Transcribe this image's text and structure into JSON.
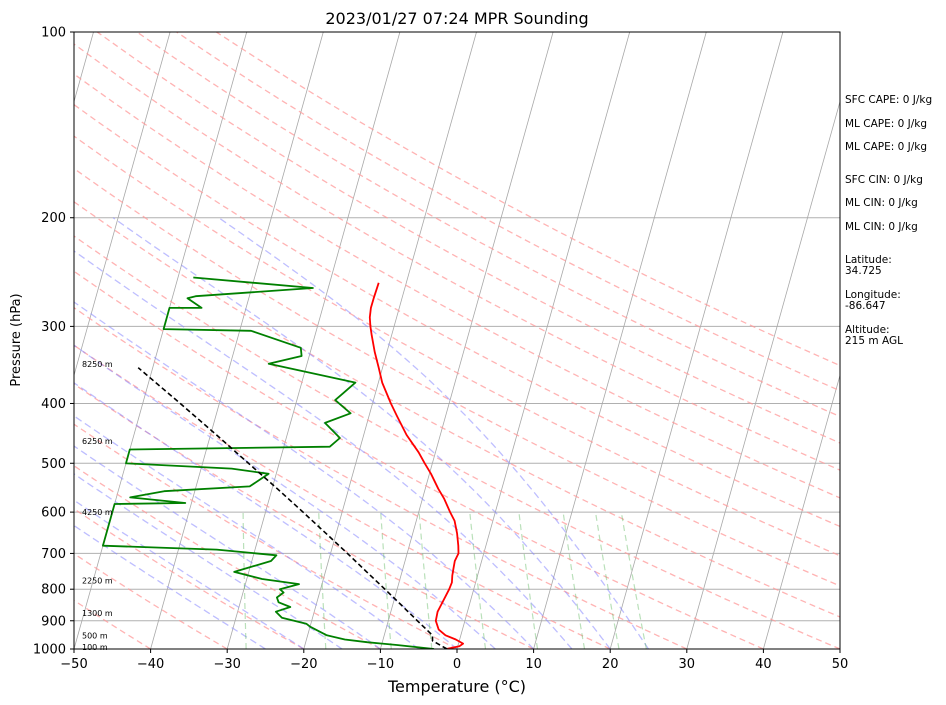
{
  "chart_data": {
    "type": "line",
    "title": "2023/01/27 07:24 MPR Sounding",
    "xlabel": "Temperature (°C)",
    "ylabel": "Pressure (hPa)",
    "xlim": [
      -50,
      50
    ],
    "ylim": [
      1000,
      100
    ],
    "yscale": "log",
    "grid": true,
    "x_ticks": [
      "−50",
      "−40",
      "−30",
      "−20",
      "−10",
      "0",
      "10",
      "20",
      "30",
      "40",
      "50"
    ],
    "y_ticks": [
      "1000",
      "900",
      "800",
      "700",
      "600",
      "500",
      "400",
      "300",
      "200",
      "100"
    ],
    "series": [
      {
        "color": "#ff0000",
        "values": [
          [
            1000,
            -1.4
          ],
          [
            990,
            0.2
          ],
          [
            980,
            0.6
          ],
          [
            965,
            -0.5
          ],
          [
            950,
            -2.0
          ],
          [
            930,
            -3.1
          ],
          [
            900,
            -3.8
          ],
          [
            870,
            -3.9
          ],
          [
            850,
            -3.7
          ],
          [
            820,
            -3.4
          ],
          [
            800,
            -3.2
          ],
          [
            780,
            -3.1
          ],
          [
            760,
            -3.3
          ],
          [
            740,
            -3.4
          ],
          [
            720,
            -3.5
          ],
          [
            700,
            -3.3
          ],
          [
            680,
            -3.6
          ],
          [
            650,
            -4.2
          ],
          [
            620,
            -5.0
          ],
          [
            600,
            -5.9
          ],
          [
            570,
            -7.2
          ],
          [
            550,
            -8.3
          ],
          [
            520,
            -9.8
          ],
          [
            500,
            -11.0
          ],
          [
            480,
            -12.2
          ],
          [
            450,
            -14.4
          ],
          [
            420,
            -16.3
          ],
          [
            400,
            -17.6
          ],
          [
            370,
            -19.5
          ],
          [
            350,
            -20.5
          ],
          [
            330,
            -21.6
          ],
          [
            310,
            -22.6
          ],
          [
            300,
            -23.1
          ],
          [
            290,
            -23.5
          ],
          [
            280,
            -23.7
          ],
          [
            270,
            -23.7
          ],
          [
            255,
            -23.6
          ]
        ]
      },
      {
        "color": "#008000",
        "values": [
          [
            1000,
            -3.0
          ],
          [
            985,
            -8.0
          ],
          [
            975,
            -12.0
          ],
          [
            965,
            -15.0
          ],
          [
            950,
            -17.5
          ],
          [
            920,
            -20.0
          ],
          [
            910,
            -20.6
          ],
          [
            890,
            -24.0
          ],
          [
            870,
            -25.0
          ],
          [
            855,
            -23.3
          ],
          [
            840,
            -25.0
          ],
          [
            825,
            -25.4
          ],
          [
            810,
            -24.7
          ],
          [
            800,
            -25.3
          ],
          [
            785,
            -23.0
          ],
          [
            770,
            -28.0
          ],
          [
            750,
            -31.9
          ],
          [
            720,
            -27.5
          ],
          [
            705,
            -27.0
          ],
          [
            690,
            -35.0
          ],
          [
            680,
            -50.0
          ],
          [
            582,
            -50.0
          ],
          [
            580,
            -40.8
          ],
          [
            568,
            -48.2
          ],
          [
            555,
            -44.0
          ],
          [
            545,
            -33.0
          ],
          [
            520,
            -31.0
          ],
          [
            510,
            -36.0
          ],
          [
            500,
            -50.0
          ],
          [
            475,
            -50.0
          ],
          [
            470,
            -24.0
          ],
          [
            455,
            -23.0
          ],
          [
            430,
            -25.5
          ],
          [
            415,
            -22.5
          ],
          [
            395,
            -25.0
          ],
          [
            385,
            -24.2
          ],
          [
            370,
            -23.0
          ],
          [
            345,
            -35.0
          ],
          [
            335,
            -31.0
          ],
          [
            325,
            -31.4
          ],
          [
            305,
            -38.5
          ],
          [
            303,
            -50.0
          ],
          [
            280,
            -50.0
          ],
          [
            280,
            -45.8
          ],
          [
            270,
            -48.0
          ],
          [
            268,
            -47.0
          ],
          [
            260,
            -32.0
          ],
          [
            250,
            -48.0
          ]
        ]
      },
      {
        "color": "#000000",
        "style": "dashed",
        "values": [
          [
            1000,
            -1.3
          ],
          [
            970,
            -3.5
          ],
          [
            950,
            -3.7
          ],
          [
            900,
            -6.2
          ],
          [
            850,
            -8.8
          ],
          [
            800,
            -11.6
          ],
          [
            750,
            -14.6
          ],
          [
            700,
            -17.8
          ],
          [
            650,
            -21.3
          ],
          [
            600,
            -25.1
          ],
          [
            550,
            -29.3
          ],
          [
            500,
            -34.0
          ],
          [
            450,
            -39.2
          ],
          [
            400,
            -45.1
          ],
          [
            350,
            -51.9
          ]
        ]
      }
    ],
    "height_labels": [
      "100 m",
      "500 m",
      "1300 m",
      "2250 m",
      "4250 m",
      "6250 m",
      "8250 m"
    ],
    "annotations": [
      "SFC CAPE: 0 J/kg",
      "ML CAPE: 0 J/kg",
      "ML CAPE: 0 J/kg",
      "SFC CIN: 0 J/kg",
      "ML CIN: 0 J/kg",
      "ML CIN: 0 J/kg",
      "Latitude:",
      "34.725",
      "Longitude:",
      "-86.647",
      "Altitude:",
      "215 m AGL"
    ]
  }
}
